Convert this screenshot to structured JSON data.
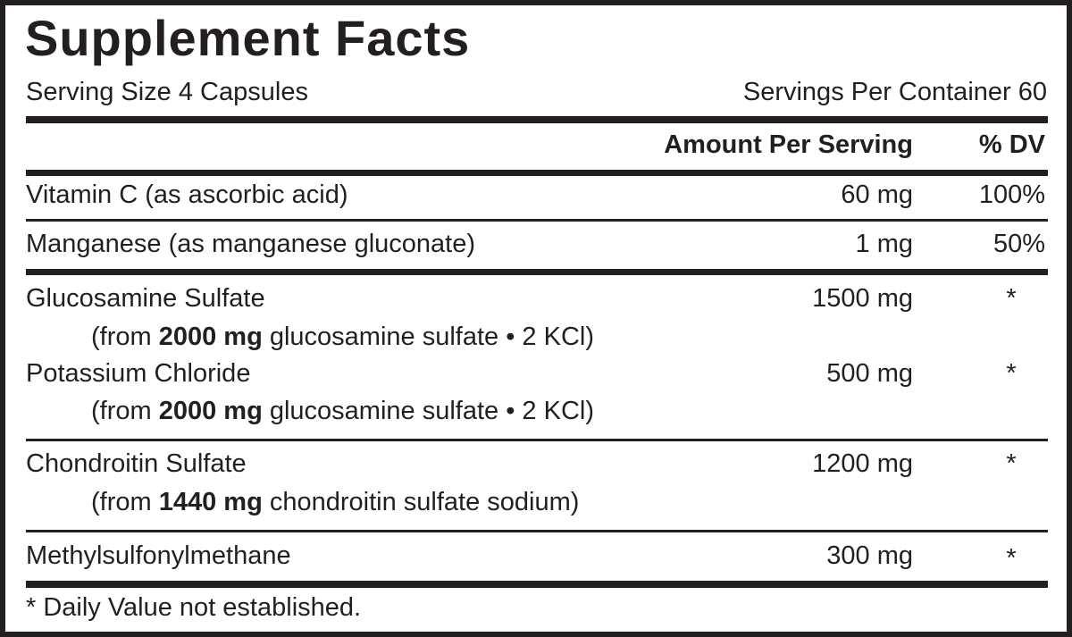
{
  "title": "Supplement Facts",
  "serving_size": "Serving Size 4 Capsules",
  "servings_per_container": "Servings Per Container 60",
  "header": {
    "amount": "Amount Per Serving",
    "dv": "% DV"
  },
  "rows": [
    {
      "name": "Vitamin C (as ascorbic acid)",
      "amount": "60 mg",
      "dv": "100%"
    },
    {
      "name": "Manganese (as manganese gluconate)",
      "amount": "1 mg",
      "dv": "50%"
    },
    {
      "name": "Glucosamine Sulfate",
      "amount": "1500 mg",
      "dv": "*",
      "source_pre": "(from ",
      "source_bold": "2000 mg",
      "source_post": " glucosamine sulfate • 2 KCl)"
    },
    {
      "name": "Potassium Chloride",
      "amount": "500 mg",
      "dv": "*",
      "source_pre": "(from ",
      "source_bold": "2000 mg",
      "source_post": " glucosamine sulfate • 2 KCl)"
    },
    {
      "name": "Chondroitin Sulfate",
      "amount": "1200 mg",
      "dv": "*",
      "source_pre": "(from ",
      "source_bold": "1440 mg",
      "source_post": " chondroitin sulfate sodium)"
    },
    {
      "name": "Methylsulfonylmethane",
      "amount": "300 mg",
      "dv": "*"
    }
  ],
  "footnote": "* Daily Value not established."
}
